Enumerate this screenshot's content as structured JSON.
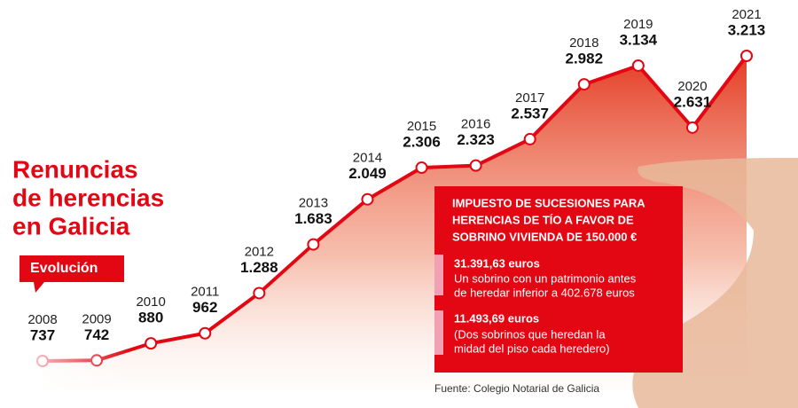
{
  "chart_data": {
    "type": "line",
    "title_lines": [
      "Renuncias",
      "de herencias",
      "en Galicia"
    ],
    "badge": "Evolución",
    "categories": [
      "2008",
      "2009",
      "2010",
      "2011",
      "2012",
      "2013",
      "2014",
      "2015",
      "2016",
      "2017",
      "2018",
      "2019",
      "2020",
      "2021"
    ],
    "values": [
      737,
      742,
      880,
      962,
      1288,
      1683,
      2049,
      2306,
      2323,
      2537,
      2982,
      3134,
      2631,
      3213
    ],
    "value_labels": [
      "737",
      "742",
      "880",
      "962",
      "1.288",
      "1.683",
      "2.049",
      "2.306",
      "2.323",
      "2.537",
      "2.982",
      "3.134",
      "2.631",
      "3.213"
    ],
    "color": "#e30613",
    "box": {
      "title_lines": [
        "IMPUESTO DE SUCESIONES PARA",
        "HERENCIAS DE TÍO A FAVOR DE",
        "SOBRINO  VIVIENDA DE 150.000 €"
      ],
      "items": [
        {
          "amount": "31.391,63 euros",
          "text_lines": [
            "Un sobrino con un patrimonio antes",
            "de heredar inferior a 402.678 euros"
          ]
        },
        {
          "amount": "11.493,69 euros",
          "text_lines": [
            "(Dos sobrinos que heredan la",
            "midad del piso cada heredero)"
          ]
        }
      ]
    },
    "source": "Fuente: Colegio Notarial de Galicia"
  }
}
